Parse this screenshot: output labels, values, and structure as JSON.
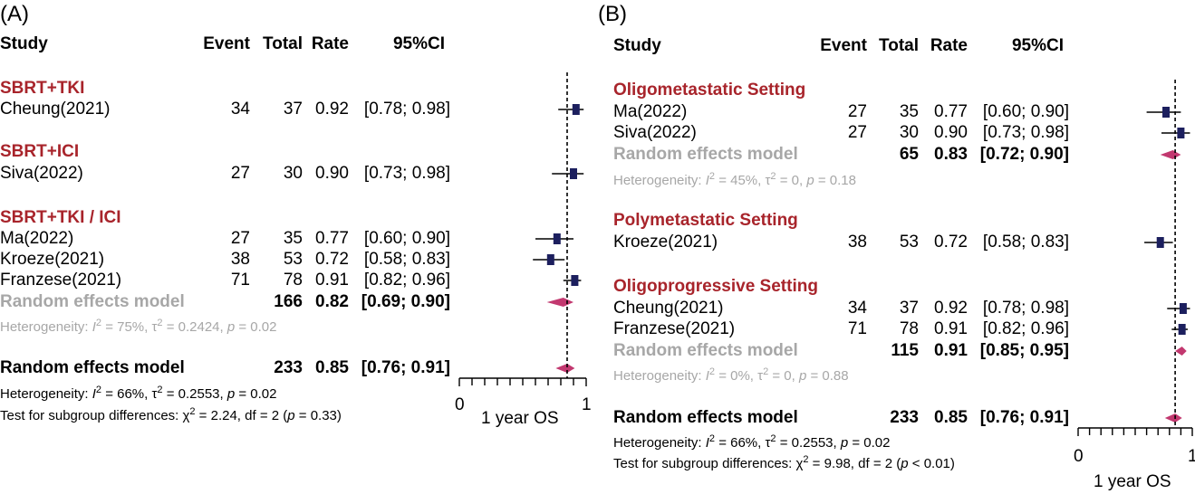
{
  "chart_data": [
    {
      "type": "forest",
      "panel_label": "(A)",
      "columns": [
        "Study",
        "Event",
        "Total",
        "Rate",
        "95%CI"
      ],
      "groups": [
        {
          "name": "SBRT+TKI",
          "studies": [
            {
              "study": "Cheung(2021)",
              "event": "34",
              "total": "37",
              "rate": "0.92",
              "ci": "[0.78; 0.98]",
              "est": 0.92,
              "lo": 0.78,
              "hi": 0.98
            }
          ]
        },
        {
          "name": "SBRT+ICI",
          "studies": [
            {
              "study": "Siva(2022)",
              "event": "27",
              "total": "30",
              "rate": "0.90",
              "ci": "[0.73; 0.98]",
              "est": 0.9,
              "lo": 0.73,
              "hi": 0.98
            }
          ]
        },
        {
          "name": "SBRT+TKI / ICI",
          "studies": [
            {
              "study": "Ma(2022)",
              "event": "27",
              "total": "35",
              "rate": "0.77",
              "ci": "[0.60; 0.90]",
              "est": 0.77,
              "lo": 0.6,
              "hi": 0.9
            },
            {
              "study": "Kroeze(2021)",
              "event": "38",
              "total": "53",
              "rate": "0.72",
              "ci": "[0.58; 0.83]",
              "est": 0.72,
              "lo": 0.58,
              "hi": 0.83
            },
            {
              "study": "Franzese(2021)",
              "event": "71",
              "total": "78",
              "rate": "0.91",
              "ci": "[0.82; 0.96]",
              "est": 0.91,
              "lo": 0.82,
              "hi": 0.96
            }
          ],
          "pooled": {
            "label": "Random effects model",
            "total": "166",
            "rate": "0.82",
            "ci": "[0.69; 0.90]",
            "est": 0.82,
            "lo": 0.69,
            "hi": 0.9
          },
          "heterogeneity": {
            "prefix": "Heterogeneity: ",
            "i2": "I",
            "i2_val": " = 75%, ",
            "tau": "τ",
            "tau_val": " = 0.2424, ",
            "p": "p",
            "p_val": " = 0.02"
          }
        }
      ],
      "overall": {
        "label": "Random effects model",
        "total": "233",
        "rate": "0.85",
        "ci": "[0.76; 0.91]",
        "est": 0.85,
        "lo": 0.76,
        "hi": 0.91
      },
      "overall_heterogeneity": {
        "prefix": "Heterogeneity: ",
        "i2": "I",
        "i2_val": " = 66%, ",
        "tau": "τ",
        "tau_val": " = 0.2553, ",
        "p": "p",
        "p_val": " = 0.02"
      },
      "subgroup_test": {
        "prefix": "Test for subgroup differences: ",
        "chi": "χ",
        "chi_val": " = 2.24, df = 2 (",
        "p": "p",
        "p_val": " = 0.33)"
      },
      "axis": {
        "min": 0,
        "max": 1,
        "ticks": [
          "0",
          "1"
        ],
        "xlabel": "1 year OS",
        "ref_line": 0.85
      }
    },
    {
      "type": "forest",
      "panel_label": "(B)",
      "columns": [
        "Study",
        "Event",
        "Total",
        "Rate",
        "95%CI"
      ],
      "groups": [
        {
          "name": "Oligometastatic Setting",
          "studies": [
            {
              "study": "Ma(2022)",
              "event": "27",
              "total": "35",
              "rate": "0.77",
              "ci": "[0.60; 0.90]",
              "est": 0.77,
              "lo": 0.6,
              "hi": 0.9
            },
            {
              "study": "Siva(2022)",
              "event": "27",
              "total": "30",
              "rate": "0.90",
              "ci": "[0.73; 0.98]",
              "est": 0.9,
              "lo": 0.73,
              "hi": 0.98
            }
          ],
          "pooled": {
            "label": "Random effects model",
            "total": "65",
            "rate": "0.83",
            "ci": "[0.72; 0.90]",
            "est": 0.83,
            "lo": 0.72,
            "hi": 0.9
          },
          "heterogeneity": {
            "prefix": "Heterogeneity: ",
            "i2": "I",
            "i2_val": " = 45%, ",
            "tau": "τ",
            "tau_val": " = 0, ",
            "p": "p",
            "p_val": " = 0.18"
          }
        },
        {
          "name": "Polymetastatic Setting",
          "studies": [
            {
              "study": "Kroeze(2021)",
              "event": "38",
              "total": "53",
              "rate": "0.72",
              "ci": "[0.58; 0.83]",
              "est": 0.72,
              "lo": 0.58,
              "hi": 0.83
            }
          ]
        },
        {
          "name": "Oligoprogressive Setting",
          "studies": [
            {
              "study": "Cheung(2021)",
              "event": "34",
              "total": "37",
              "rate": "0.92",
              "ci": "[0.78; 0.98]",
              "est": 0.92,
              "lo": 0.78,
              "hi": 0.98
            },
            {
              "study": "Franzese(2021)",
              "event": "71",
              "total": "78",
              "rate": "0.91",
              "ci": "[0.82; 0.96]",
              "est": 0.91,
              "lo": 0.82,
              "hi": 0.96
            }
          ],
          "pooled": {
            "label": "Random effects model",
            "total": "115",
            "rate": "0.91",
            "ci": "[0.85; 0.95]",
            "est": 0.91,
            "lo": 0.85,
            "hi": 0.95
          },
          "heterogeneity": {
            "prefix": "Heterogeneity: ",
            "i2": "I",
            "i2_val": " = 0%, ",
            "tau": "τ",
            "tau_val": " = 0, ",
            "p": "p",
            "p_val": " = 0.88"
          }
        }
      ],
      "overall": {
        "label": "Random effects model",
        "total": "233",
        "rate": "0.85",
        "ci": "[0.76; 0.91]",
        "est": 0.85,
        "lo": 0.76,
        "hi": 0.91
      },
      "overall_heterogeneity": {
        "prefix": "Heterogeneity: ",
        "i2": "I",
        "i2_val": " = 66%, ",
        "tau": "τ",
        "tau_val": " = 0.2553, ",
        "p": "p",
        "p_val": " = 0.02"
      },
      "subgroup_test": {
        "prefix": "Test for subgroup differences: ",
        "chi": "χ",
        "chi_val": " = 9.98, df = 2 (",
        "p": "p",
        "p_val": " < 0.01)"
      },
      "axis": {
        "min": 0,
        "max": 1,
        "ticks": [
          "0",
          "1"
        ],
        "xlabel": "1 year OS",
        "ref_line": 0.85
      }
    }
  ],
  "colors": {
    "group_title": "#a8242b",
    "study_marker": "#1c1f5e",
    "pooled_diamond": "#c2386f",
    "pooled_text": "#a7a7a7"
  }
}
